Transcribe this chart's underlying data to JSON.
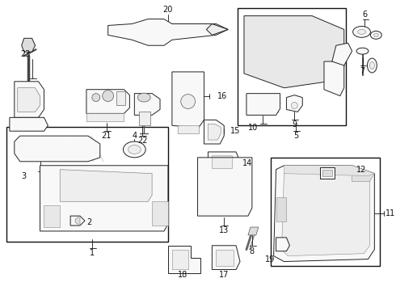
{
  "bg_color": "#ffffff",
  "figsize": [
    4.9,
    3.6
  ],
  "dpi": 100,
  "lw": 0.7,
  "lc": "#222222",
  "fc": "#f8f8f8",
  "label_fs": 7.0
}
